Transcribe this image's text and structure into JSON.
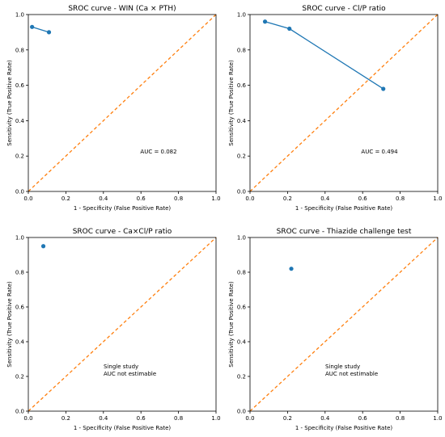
{
  "colors": {
    "series": "#1f77b4",
    "diagonal": "#ff7f0e",
    "axis": "#000000",
    "background": "#ffffff"
  },
  "chart_data": [
    {
      "type": "line",
      "title": "SROC curve - WIN (Ca × PTH)",
      "xlabel": "1 - Specificity (False Positive Rate)",
      "ylabel": "Sensitivity (True Positive Rate)",
      "xlim": [
        0,
        1
      ],
      "ylim": [
        0,
        1
      ],
      "x_ticks": [
        "0.0",
        "0.2",
        "0.4",
        "0.6",
        "0.8",
        "1.0"
      ],
      "y_ticks": [
        "0.0",
        "0.2",
        "0.4",
        "0.6",
        "0.8",
        "1.0"
      ],
      "grid": false,
      "reference_line": {
        "style": "dashed",
        "from": [
          0,
          0
        ],
        "to": [
          1,
          1
        ]
      },
      "series": [
        {
          "x": [
            0.02,
            0.11
          ],
          "y": [
            0.93,
            0.9
          ],
          "markers": true,
          "connected": true
        }
      ],
      "annotation": [
        "AUC = 0.082"
      ]
    },
    {
      "type": "line",
      "title": "SROC curve - Cl/P ratio",
      "xlabel": "1 - Specificity (False Positive Rate)",
      "ylabel": "Sensitivity (True Positive Rate)",
      "xlim": [
        0,
        1
      ],
      "ylim": [
        0,
        1
      ],
      "x_ticks": [
        "0.0",
        "0.2",
        "0.4",
        "0.6",
        "0.8",
        "1.0"
      ],
      "y_ticks": [
        "0.0",
        "0.2",
        "0.4",
        "0.6",
        "0.8",
        "1.0"
      ],
      "grid": false,
      "reference_line": {
        "style": "dashed",
        "from": [
          0,
          0
        ],
        "to": [
          1,
          1
        ]
      },
      "series": [
        {
          "x": [
            0.08,
            0.21,
            0.71
          ],
          "y": [
            0.96,
            0.92,
            0.58
          ],
          "markers": true,
          "connected": true
        }
      ],
      "annotation": [
        "AUC = 0.494"
      ]
    },
    {
      "type": "scatter",
      "title": "SROC curve - Ca×Cl/P ratio",
      "xlabel": "1 - Specificity (False Positive Rate)",
      "ylabel": "Sensitivity (True Positive Rate)",
      "xlim": [
        0,
        1
      ],
      "ylim": [
        0,
        1
      ],
      "x_ticks": [
        "0.0",
        "0.2",
        "0.4",
        "0.6",
        "0.8",
        "1.0"
      ],
      "y_ticks": [
        "0.0",
        "0.2",
        "0.4",
        "0.6",
        "0.8",
        "1.0"
      ],
      "grid": false,
      "reference_line": {
        "style": "dashed",
        "from": [
          0,
          0
        ],
        "to": [
          1,
          1
        ]
      },
      "series": [
        {
          "x": [
            0.08
          ],
          "y": [
            0.95
          ],
          "markers": true,
          "connected": false
        }
      ],
      "annotation": [
        "Single study",
        "AUC not estimable"
      ]
    },
    {
      "type": "scatter",
      "title": "SROC curve - Thiazide challenge test",
      "xlabel": "1 - Specificity (False Positive Rate)",
      "ylabel": "Sensitivity (True Positive Rate)",
      "xlim": [
        0,
        1
      ],
      "ylim": [
        0,
        1
      ],
      "x_ticks": [
        "0.0",
        "0.2",
        "0.4",
        "0.6",
        "0.8",
        "1.0"
      ],
      "y_ticks": [
        "0.0",
        "0.2",
        "0.4",
        "0.6",
        "0.8",
        "1.0"
      ],
      "grid": false,
      "reference_line": {
        "style": "dashed",
        "from": [
          0,
          0
        ],
        "to": [
          1,
          1
        ]
      },
      "series": [
        {
          "x": [
            0.22
          ],
          "y": [
            0.82
          ],
          "markers": true,
          "connected": false
        }
      ],
      "annotation": [
        "Single study",
        "AUC not estimable"
      ]
    }
  ]
}
